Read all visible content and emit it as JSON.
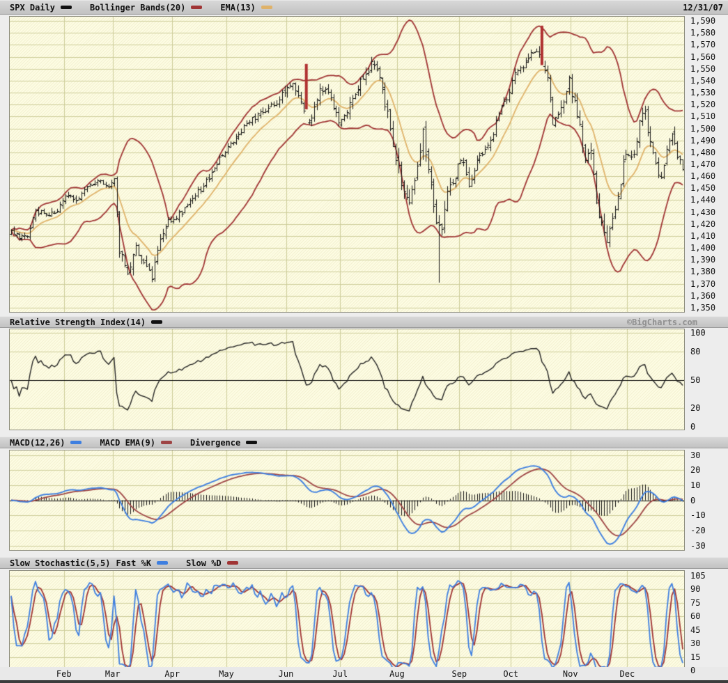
{
  "header": {
    "symbol": "SPX Daily",
    "bollinger_label": "Bollinger Bands(20)",
    "ema_label": "EMA(13)",
    "date": "12/31/07"
  },
  "rsi_header": {
    "label": "Relative Strength Index(14)",
    "watermark": "©BigCharts.com"
  },
  "macd_header": {
    "macd_label": "MACD(12,26)",
    "signal_label": "MACD EMA(9)",
    "divergence_label": "Divergence"
  },
  "stoch_header": {
    "label": "Slow Stochastic(5,5)",
    "k_label": "Fast %K",
    "d_label": "Slow %D"
  },
  "colors": {
    "page_bg": "#EDEDED",
    "chart_bg": "#FDFCE3",
    "grid": "#CCCC99",
    "panel_border": "#8B8B7B",
    "bar_black": "#111111",
    "highlight_red": "#B03030",
    "bollinger": "#A03434",
    "ema": "#DFB269",
    "rsi_line": "#222222",
    "baseline_black": "#000000",
    "macd_line": "#3E7FE0",
    "macd_signal": "#9E4444",
    "histogram": "#111111",
    "stoch_k": "#3E7FE0",
    "stoch_d": "#A03434",
    "watermark": "#8F8F8F"
  },
  "chart_data": {
    "type": "ohlc-multi-panel",
    "x": {
      "total_days": 249,
      "month_labels": [
        "Feb",
        "Mar",
        "Apr",
        "May",
        "Jun",
        "Jul",
        "Aug",
        "Sep",
        "Oct",
        "Nov",
        "Dec"
      ],
      "month_day_index": [
        20,
        38,
        60,
        80,
        102,
        122,
        143,
        166,
        185,
        207,
        228
      ]
    },
    "panels": [
      {
        "id": "price",
        "type": "ohlc",
        "title": "SPX Daily",
        "y_range": [
          1346.5,
          1593.5
        ],
        "tick_values": [
          1590,
          1580,
          1570,
          1560,
          1550,
          1540,
          1530,
          1520,
          1510,
          1500,
          1490,
          1480,
          1470,
          1460,
          1450,
          1440,
          1430,
          1420,
          1410,
          1400,
          1390,
          1380,
          1370,
          1360,
          1350
        ],
        "tick_labels": [
          "1,590",
          "1,580",
          "1,570",
          "1,560",
          "1,550",
          "1,540",
          "1,530",
          "1,520",
          "1,510",
          "1,500",
          "1,490",
          "1,480",
          "1,470",
          "1,460",
          "1,450",
          "1,440",
          "1,430",
          "1,420",
          "1,410",
          "1,400",
          "1,390",
          "1,380",
          "1,370",
          "1,360",
          "1,350"
        ],
        "grid_values": [
          1590,
          1580,
          1570,
          1560,
          1550,
          1540,
          1530,
          1520,
          1510,
          1500,
          1490,
          1480,
          1470,
          1460,
          1450,
          1440,
          1430,
          1420,
          1410,
          1400,
          1390,
          1380,
          1370,
          1360,
          1350
        ],
        "seed": 11,
        "close_anchors": [
          [
            0,
            1416
          ],
          [
            3,
            1409
          ],
          [
            6,
            1412
          ],
          [
            9,
            1431
          ],
          [
            13,
            1428
          ],
          [
            17,
            1432
          ],
          [
            20,
            1446
          ],
          [
            24,
            1440
          ],
          [
            28,
            1451
          ],
          [
            32,
            1457
          ],
          [
            36,
            1451
          ],
          [
            38,
            1457
          ],
          [
            40,
            1399
          ],
          [
            43,
            1374
          ],
          [
            46,
            1402
          ],
          [
            49,
            1387
          ],
          [
            52,
            1377
          ],
          [
            55,
            1410
          ],
          [
            58,
            1422
          ],
          [
            60,
            1424
          ],
          [
            63,
            1430
          ],
          [
            67,
            1443
          ],
          [
            71,
            1452
          ],
          [
            75,
            1468
          ],
          [
            79,
            1482
          ],
          [
            82,
            1488
          ],
          [
            86,
            1503
          ],
          [
            90,
            1509
          ],
          [
            94,
            1515
          ],
          [
            98,
            1523
          ],
          [
            101,
            1531
          ],
          [
            104,
            1540
          ],
          [
            107,
            1525
          ],
          [
            109,
            1507
          ],
          [
            111,
            1512
          ],
          [
            114,
            1532
          ],
          [
            117,
            1533
          ],
          [
            119,
            1518
          ],
          [
            121,
            1503
          ],
          [
            124,
            1515
          ],
          [
            127,
            1526
          ],
          [
            130,
            1545
          ],
          [
            133,
            1553
          ],
          [
            136,
            1541
          ],
          [
            139,
            1512
          ],
          [
            141,
            1482
          ],
          [
            143,
            1465
          ],
          [
            145,
            1445
          ],
          [
            147,
            1433
          ],
          [
            150,
            1470
          ],
          [
            152,
            1497
          ],
          [
            155,
            1453
          ],
          [
            157,
            1426
          ],
          [
            159,
            1411
          ],
          [
            161,
            1446
          ],
          [
            163,
            1455
          ],
          [
            165,
            1468
          ],
          [
            167,
            1474
          ],
          [
            169,
            1451
          ],
          [
            172,
            1472
          ],
          [
            175,
            1484
          ],
          [
            178,
            1497
          ],
          [
            181,
            1519
          ],
          [
            184,
            1530
          ],
          [
            186,
            1547
          ],
          [
            189,
            1552
          ],
          [
            192,
            1562
          ],
          [
            194,
            1565
          ],
          [
            196,
            1554
          ],
          [
            198,
            1540
          ],
          [
            200,
            1506
          ],
          [
            202,
            1515
          ],
          [
            204,
            1521
          ],
          [
            206,
            1540
          ],
          [
            208,
            1520
          ],
          [
            210,
            1499
          ],
          [
            212,
            1475
          ],
          [
            214,
            1481
          ],
          [
            216,
            1439
          ],
          [
            218,
            1425
          ],
          [
            220,
            1407
          ],
          [
            222,
            1428
          ],
          [
            224,
            1440
          ],
          [
            226,
            1469
          ],
          [
            228,
            1481
          ],
          [
            230,
            1478
          ],
          [
            232,
            1504
          ],
          [
            234,
            1515
          ],
          [
            236,
            1486
          ],
          [
            238,
            1468
          ],
          [
            240,
            1460
          ],
          [
            242,
            1484
          ],
          [
            244,
            1497
          ],
          [
            246,
            1478
          ],
          [
            248,
            1468
          ]
        ],
        "range_anchors": [
          [
            0,
            9
          ],
          [
            20,
            9
          ],
          [
            38,
            10
          ],
          [
            41,
            18
          ],
          [
            50,
            15
          ],
          [
            60,
            9
          ],
          [
            80,
            9
          ],
          [
            100,
            11
          ],
          [
            105,
            14
          ],
          [
            122,
            13
          ],
          [
            140,
            18
          ],
          [
            143,
            22
          ],
          [
            150,
            24
          ],
          [
            160,
            20
          ],
          [
            166,
            13
          ],
          [
            185,
            12
          ],
          [
            196,
            14
          ],
          [
            200,
            16
          ],
          [
            207,
            18
          ],
          [
            216,
            22
          ],
          [
            222,
            18
          ],
          [
            228,
            16
          ],
          [
            240,
            14
          ],
          [
            248,
            12
          ]
        ],
        "highlight_bars": [
          {
            "day": 109,
            "high": 1554,
            "low": 1516
          },
          {
            "day": 196,
            "high": 1586,
            "low": 1553
          }
        ],
        "wick_bars": [
          {
            "day": 158,
            "low": 1371
          }
        ],
        "overlays": [
          {
            "name": "Bollinger Bands(20)",
            "type": "bollinger",
            "period": 20,
            "stddev": 2
          },
          {
            "name": "EMA(13)",
            "type": "ema",
            "period": 13
          }
        ]
      },
      {
        "id": "rsi",
        "type": "line",
        "indicator": "rsi",
        "period": 14,
        "y_range": [
          -3,
          104
        ],
        "tick_values": [
          100,
          80,
          50,
          20,
          0
        ],
        "tick_labels": [
          "100",
          "80",
          "50",
          "20",
          "0"
        ],
        "grid_values": [
          100,
          80,
          20
        ],
        "baseline": 50
      },
      {
        "id": "macd",
        "type": "macd",
        "fast": 12,
        "slow": 26,
        "signal": 9,
        "y_range": [
          -33,
          33
        ],
        "tick_values": [
          30,
          20,
          10,
          0,
          -10,
          -20,
          -30
        ],
        "tick_labels": [
          "30",
          "20",
          "10",
          "0",
          "-10",
          "-20",
          "-30"
        ],
        "grid_values": [
          30,
          20,
          10,
          -10,
          -20,
          -30
        ],
        "baseline": 0
      },
      {
        "id": "stoch",
        "type": "stochastic",
        "k_period": 5,
        "d_period": 5,
        "y_range": [
          4,
          110
        ],
        "tick_values": [
          105,
          90,
          75,
          60,
          45,
          30,
          15,
          0
        ],
        "tick_labels": [
          "105",
          "90",
          "75",
          "60",
          "45",
          "30",
          "15",
          "0"
        ],
        "grid_values": [
          105,
          90,
          75,
          60,
          45,
          30,
          15
        ]
      }
    ]
  }
}
